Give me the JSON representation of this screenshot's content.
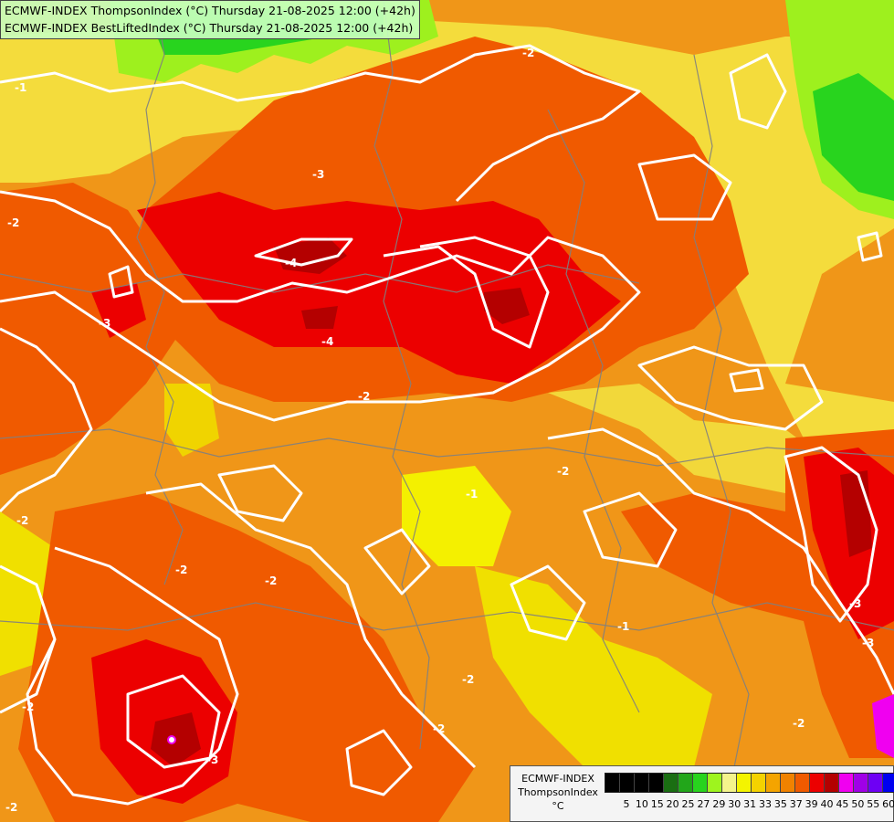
{
  "header": {
    "line1": "ECMWF-INDEX ThompsonIndex (°C) Thursday 21-08-2025 12:00 (+42h)",
    "line2": "ECMWF-INDEX BestLiftedIndex (°C) Thursday 21-08-2025 12:00 (+42h)"
  },
  "contour_labels": [
    "-1",
    "-2",
    "-3",
    "-2",
    "-3",
    "-4",
    "-4",
    "-2",
    "-1",
    "-2",
    "-2",
    "-2",
    "-2",
    "-2",
    "-3",
    "-3",
    "-2",
    "-2",
    "-1",
    "-3",
    "-2",
    "-2"
  ],
  "legend": {
    "model": "ECMWF-INDEX",
    "variable": "ThompsonIndex",
    "unit": "°C",
    "ticks": [
      "5",
      "10",
      "15",
      "20",
      "25",
      "27",
      "29",
      "30",
      "31",
      "33",
      "35",
      "37",
      "39",
      "40",
      "45",
      "50",
      "55",
      "60"
    ],
    "colors": [
      "#000000",
      "#000000",
      "#000000",
      "#000000",
      "#1a6e12",
      "#22a61a",
      "#28d41e",
      "#9ef41e",
      "#f4f48c",
      "#f4f400",
      "#f4d200",
      "#f4a400",
      "#f08200",
      "#f05a00",
      "#ec0000",
      "#b40000",
      "#f000f0",
      "#a000e6",
      "#6e00f4",
      "#0000f0"
    ]
  }
}
